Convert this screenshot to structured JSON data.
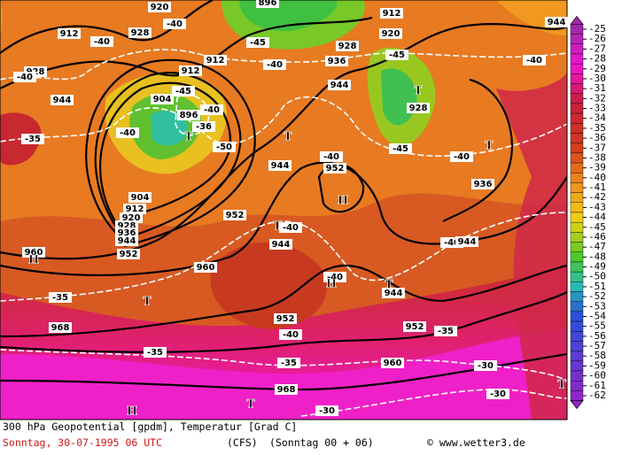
{
  "map": {
    "contour_labels": [
      "912",
      "920",
      "928",
      "-40",
      "912",
      "912",
      "904",
      "896",
      "-45",
      "-40",
      "-36",
      "-50",
      "-40",
      "904",
      "912",
      "920",
      "928",
      "936",
      "944",
      "952",
      "960",
      "968",
      "-35",
      "-35",
      "-35",
      "944",
      "928",
      "-40",
      "-40",
      "-40",
      "928",
      "936",
      "944",
      "920",
      "912",
      "-45",
      "-40",
      "944",
      "928",
      "-45",
      "-40",
      "936",
      "944",
      "952",
      "-40",
      "952",
      "944",
      "-40",
      "-40",
      "944",
      "-40",
      "944",
      "952",
      "-40",
      "952",
      "-35",
      "960",
      "-35",
      "-30",
      "968",
      "-30",
      "-30",
      "960",
      "896",
      "-45"
    ],
    "pressure_centers": [
      "T",
      "T",
      "T",
      "T",
      "H",
      "T",
      "H",
      "H",
      "T",
      "T",
      "T",
      "H",
      "T"
    ]
  },
  "legend": {
    "labels": [
      "-25",
      "-26",
      "-27",
      "-28",
      "-29",
      "-30",
      "-31",
      "-32",
      "-33",
      "-34",
      "-35",
      "-36",
      "-37",
      "-38",
      "-39",
      "-40",
      "-41",
      "-42",
      "-43",
      "-44",
      "-45",
      "-46",
      "-47",
      "-48",
      "-49",
      "-50",
      "-51",
      "-52",
      "-53",
      "-54",
      "-55",
      "-56",
      "-57",
      "-58",
      "-59",
      "-60",
      "-61",
      "-62"
    ]
  },
  "footer": {
    "line1": "300 hPa Geopotential [gpdm], Temperatur [Grad C]",
    "date": "Sonntag, 30-07-1995  06 UTC",
    "model": "(CFS)",
    "run": "(Sonntag 00 + 06)",
    "credit": "© www.wetter3.de"
  }
}
